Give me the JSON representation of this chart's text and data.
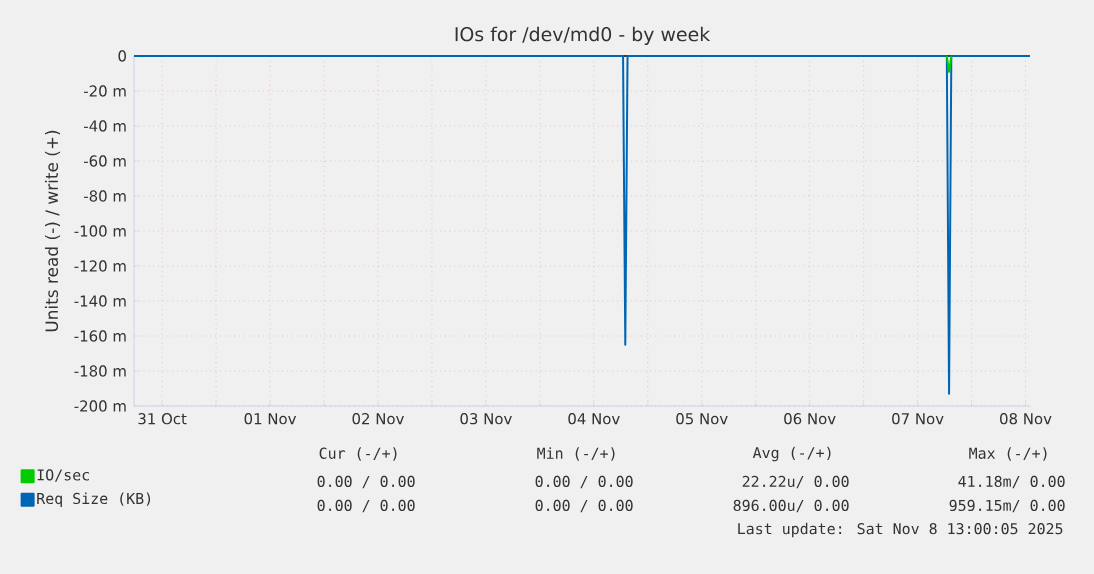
{
  "chart_data": {
    "type": "line",
    "title": "IOs for /dev/md0 - by week",
    "ylabel": "Units read (-) / write (+)",
    "xlim": [
      "2025-10-31T05:45",
      "2025-11-08T13:00"
    ],
    "ylim": [
      -200,
      0
    ],
    "xticks": [
      {
        "value": "2025-10-31T12:00",
        "label": "31 Oct"
      },
      {
        "value": "2025-11-01",
        "label": null
      },
      {
        "value": "2025-11-01T12:00",
        "label": "01 Nov"
      },
      {
        "value": "2025-11-02",
        "label": null
      },
      {
        "value": "2025-11-02T12:00",
        "label": "02 Nov"
      },
      {
        "value": "2025-11-03",
        "label": null
      },
      {
        "value": "2025-11-03T12:00",
        "label": "03 Nov"
      },
      {
        "value": "2025-11-04",
        "label": null
      },
      {
        "value": "2025-11-04T12:00",
        "label": "04 Nov"
      },
      {
        "value": "2025-11-05",
        "label": null
      },
      {
        "value": "2025-11-05T12:00",
        "label": "05 Nov"
      },
      {
        "value": "2025-11-06",
        "label": null
      },
      {
        "value": "2025-11-06T12:00",
        "label": "06 Nov"
      },
      {
        "value": "2025-11-07",
        "label": null
      },
      {
        "value": "2025-11-07T12:00",
        "label": "07 Nov"
      },
      {
        "value": "2025-11-08",
        "label": null
      },
      {
        "value": "2025-11-08T12:00",
        "label": "08 Nov"
      }
    ],
    "yticks": [
      {
        "value": -200,
        "label": "-200 m"
      },
      {
        "value": -180,
        "label": "-180 m"
      },
      {
        "value": -160,
        "label": "-160 m"
      },
      {
        "value": -140,
        "label": "-140 m"
      },
      {
        "value": -120,
        "label": "-120 m"
      },
      {
        "value": -100,
        "label": "-100 m"
      },
      {
        "value": -80,
        "label": "-80 m"
      },
      {
        "value": -60,
        "label": "-60 m"
      },
      {
        "value": -40,
        "label": "-40 m"
      },
      {
        "value": -20,
        "label": "-20 m"
      },
      0
    ],
    "grid": true,
    "legend": "bottom",
    "ref_lines": [
      {
        "axis": "y",
        "value": 0,
        "color": "#000000"
      }
    ],
    "series": [
      {
        "name": "IO/sec",
        "color": "#00cc00",
        "x": [
          "2025-11-07T18:30",
          "2025-11-07T19:00",
          "2025-11-07T19:30"
        ],
        "values": [
          0,
          -9,
          0
        ]
      },
      {
        "name": "Req Size (KB)",
        "color": "#0066b3",
        "x": [
          "2025-10-31T05:45",
          "2025-11-04T18:30",
          "2025-11-04T19:00",
          "2025-11-04T19:30",
          "2025-11-07T18:30",
          "2025-11-07T19:00",
          "2025-11-07T19:30",
          "2025-11-08T13:00"
        ],
        "values": [
          0,
          0,
          -165,
          0,
          0,
          -193,
          0,
          0
        ]
      }
    ],
    "annotations": [
      "Cur (-/+)",
      "Min (-/+)",
      "Avg (-/+)",
      "Max (-/+)",
      "0.00 / 0.00",
      "0.00 / 0.00",
      "22.22u/ 0.00",
      "41.18m/ 0.00",
      "0.00 / 0.00",
      "0.00 / 0.00",
      "896.00u/ 0.00",
      "959.15m/ 0.00",
      "Last update: Sat Nov 8 13:00:05 2025"
    ]
  }
}
